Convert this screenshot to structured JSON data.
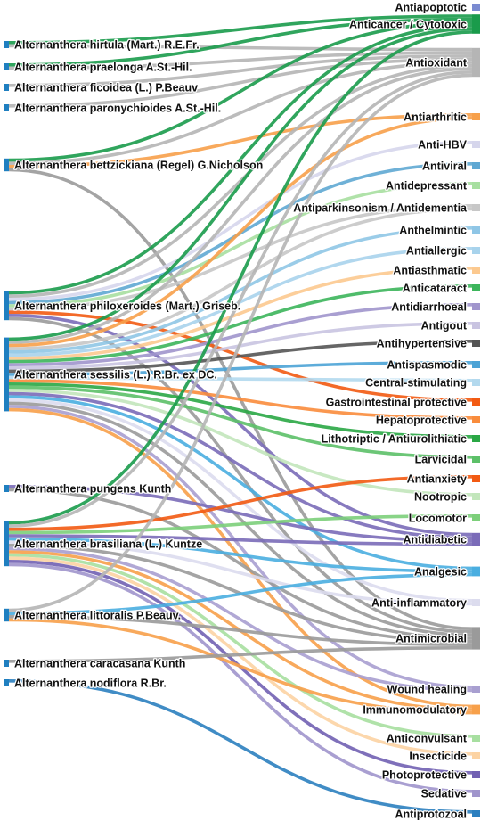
{
  "chart_data": {
    "type": "sankey",
    "sources": [
      "Alternanthera hirtula (Mart.) R.E.Fr.",
      "Alternanthera praelonga A.St.-Hil.",
      "Alternanthera ficoidea (L.) P.Beauv",
      "Alternanthera paronychioides A.St.-Hil.",
      "Alternanthera bettzickiana (Regel) G.Nicholson",
      "Alternanthera philoxeroides (Mart.) Griseb.",
      "Alternanthera sessilis (L.) R.Br. ex DC.",
      "Alternanthera pungens Kunth",
      "Alternanthera brasiliana (L.) Kuntze",
      "Alternanthera littoralis P.Beauv.",
      "Alternanthera caracasana Kunth",
      "Alternanthera nodiflora R.Br."
    ],
    "targets": [
      {
        "name": "Antiapoptotic",
        "color": "#7b8bd1"
      },
      {
        "name": "Anticancer / Cytotoxic",
        "color": "#1a9b4b"
      },
      {
        "name": "Antioxidant",
        "color": "#b5b5b5"
      },
      {
        "name": "Antiarthritic",
        "color": "#f7a04a"
      },
      {
        "name": "Anti-HBV",
        "color": "#d6d6ec"
      },
      {
        "name": "Antiviral",
        "color": "#5fa8d3"
      },
      {
        "name": "Antidepressant",
        "color": "#a7dfa0"
      },
      {
        "name": "Antiparkinsonism / Antidementia",
        "color": "#c7c7c7"
      },
      {
        "name": "Anthelmintic",
        "color": "#8fc6e6"
      },
      {
        "name": "Antiallergic",
        "color": "#a8d3ec"
      },
      {
        "name": "Antiasthmatic",
        "color": "#fcc98f"
      },
      {
        "name": "Anticataract",
        "color": "#3cb55b"
      },
      {
        "name": "Antidiarrhoeal",
        "color": "#a095cc"
      },
      {
        "name": "Antigout",
        "color": "#c9c4e1"
      },
      {
        "name": "Antihypertensive",
        "color": "#555555"
      },
      {
        "name": "Antispasmodic",
        "color": "#4ba3d6"
      },
      {
        "name": "Central-stimulating",
        "color": "#b3d9ee"
      },
      {
        "name": "Gastrointestinal protective",
        "color": "#f25a12"
      },
      {
        "name": "Hepatoprotective",
        "color": "#f98c3c"
      },
      {
        "name": "Lithotriptic / Antiurolithiatic",
        "color": "#2aa745"
      },
      {
        "name": "Larvicidal",
        "color": "#5cc068"
      },
      {
        "name": "Antianxiety",
        "color": "#f25a12"
      },
      {
        "name": "Nootropic",
        "color": "#c2e6bb"
      },
      {
        "name": "Locomotor",
        "color": "#7ccf7a"
      },
      {
        "name": "Antidiabetic",
        "color": "#7a6bb8"
      },
      {
        "name": "Analgesic",
        "color": "#4aaee0"
      },
      {
        "name": "Anti-inflammatory",
        "color": "#dcdcee"
      },
      {
        "name": "Antimicrobial",
        "color": "#9a9a9a"
      },
      {
        "name": "Wound healing",
        "color": "#a89fd0"
      },
      {
        "name": "Immunomodulatory",
        "color": "#f7a04a"
      },
      {
        "name": "Anticonvulsant",
        "color": "#a7dfa0"
      },
      {
        "name": "Insecticide",
        "color": "#fcd3a3"
      },
      {
        "name": "Photoprotective",
        "color": "#7160b3"
      },
      {
        "name": "Sedative",
        "color": "#a095cc"
      },
      {
        "name": "Antiprotozoal",
        "color": "#2b7fbf"
      }
    ],
    "links": [
      {
        "source": 0,
        "target": 1,
        "value": 1
      },
      {
        "source": 0,
        "target": 2,
        "value": 1
      },
      {
        "source": 1,
        "target": 1,
        "value": 1
      },
      {
        "source": 1,
        "target": 2,
        "value": 1
      },
      {
        "source": 2,
        "target": 2,
        "value": 1
      },
      {
        "source": 3,
        "target": 2,
        "value": 1
      },
      {
        "source": 4,
        "target": 3,
        "value": 1
      },
      {
        "source": 4,
        "target": 2,
        "value": 1
      },
      {
        "source": 4,
        "target": 1,
        "value": 1
      },
      {
        "source": 4,
        "target": 27,
        "value": 1
      },
      {
        "source": 5,
        "target": 1,
        "value": 1
      },
      {
        "source": 5,
        "target": 2,
        "value": 1
      },
      {
        "source": 5,
        "target": 4,
        "value": 1
      },
      {
        "source": 5,
        "target": 5,
        "value": 1
      },
      {
        "source": 5,
        "target": 6,
        "value": 1
      },
      {
        "source": 5,
        "target": 7,
        "value": 1
      },
      {
        "source": 5,
        "target": 17,
        "value": 1
      },
      {
        "source": 5,
        "target": 24,
        "value": 1
      },
      {
        "source": 5,
        "target": 27,
        "value": 1
      },
      {
        "source": 6,
        "target": 1,
        "value": 1
      },
      {
        "source": 6,
        "target": 2,
        "value": 1
      },
      {
        "source": 6,
        "target": 3,
        "value": 1
      },
      {
        "source": 6,
        "target": 7,
        "value": 1
      },
      {
        "source": 6,
        "target": 8,
        "value": 1
      },
      {
        "source": 6,
        "target": 9,
        "value": 1
      },
      {
        "source": 6,
        "target": 10,
        "value": 1
      },
      {
        "source": 6,
        "target": 11,
        "value": 1
      },
      {
        "source": 6,
        "target": 12,
        "value": 1
      },
      {
        "source": 6,
        "target": 13,
        "value": 1
      },
      {
        "source": 6,
        "target": 14,
        "value": 1
      },
      {
        "source": 6,
        "target": 15,
        "value": 1
      },
      {
        "source": 6,
        "target": 16,
        "value": 1
      },
      {
        "source": 6,
        "target": 18,
        "value": 1
      },
      {
        "source": 6,
        "target": 19,
        "value": 1
      },
      {
        "source": 6,
        "target": 20,
        "value": 1
      },
      {
        "source": 6,
        "target": 22,
        "value": 1
      },
      {
        "source": 6,
        "target": 24,
        "value": 1
      },
      {
        "source": 6,
        "target": 25,
        "value": 1
      },
      {
        "source": 6,
        "target": 26,
        "value": 1
      },
      {
        "source": 6,
        "target": 27,
        "value": 1
      },
      {
        "source": 6,
        "target": 28,
        "value": 1
      },
      {
        "source": 6,
        "target": 29,
        "value": 1
      },
      {
        "source": 7,
        "target": 24,
        "value": 1
      },
      {
        "source": 7,
        "target": 27,
        "value": 1
      },
      {
        "source": 8,
        "target": 1,
        "value": 1
      },
      {
        "source": 8,
        "target": 2,
        "value": 1
      },
      {
        "source": 8,
        "target": 21,
        "value": 1
      },
      {
        "source": 8,
        "target": 23,
        "value": 1
      },
      {
        "source": 8,
        "target": 24,
        "value": 1
      },
      {
        "source": 8,
        "target": 25,
        "value": 1
      },
      {
        "source": 8,
        "target": 26,
        "value": 1
      },
      {
        "source": 8,
        "target": 27,
        "value": 1
      },
      {
        "source": 8,
        "target": 28,
        "value": 1
      },
      {
        "source": 8,
        "target": 29,
        "value": 1
      },
      {
        "source": 8,
        "target": 30,
        "value": 1
      },
      {
        "source": 8,
        "target": 31,
        "value": 1
      },
      {
        "source": 8,
        "target": 32,
        "value": 1
      },
      {
        "source": 8,
        "target": 33,
        "value": 1
      },
      {
        "source": 9,
        "target": 2,
        "value": 1
      },
      {
        "source": 9,
        "target": 25,
        "value": 1
      },
      {
        "source": 9,
        "target": 27,
        "value": 1
      },
      {
        "source": 9,
        "target": 29,
        "value": 1
      },
      {
        "source": 10,
        "target": 27,
        "value": 1
      },
      {
        "source": 11,
        "target": 34,
        "value": 1
      }
    ]
  }
}
